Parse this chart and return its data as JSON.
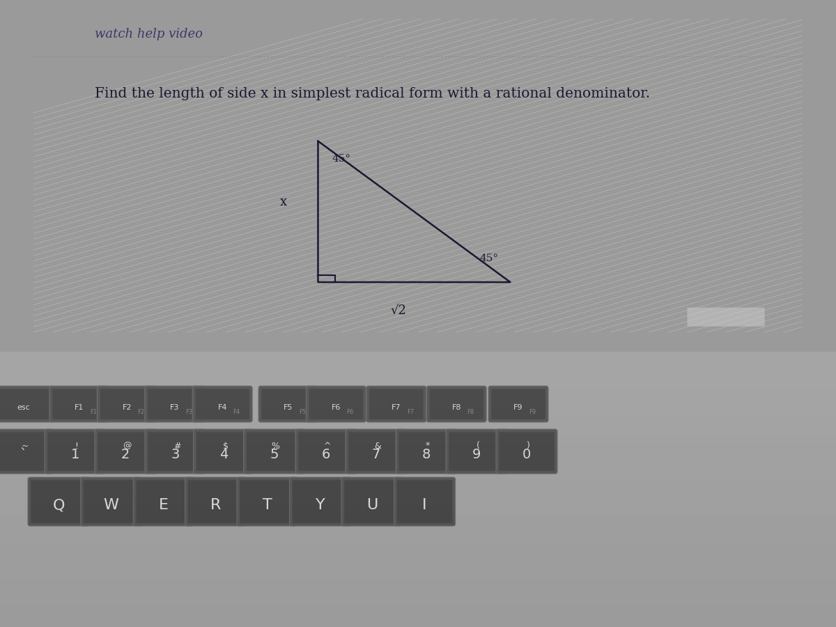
{
  "title_line1": "Find the length of side x in simplest radical form with a rational denominator.",
  "angle_top": "45°",
  "angle_bottom": "45°",
  "side_label": "x",
  "hyp_label": "√2",
  "screen_bg": "#e8e4d8",
  "screen_stripe_color": "#d8d4c8",
  "laptop_body_color": "#b0b0b0",
  "bezel_color": "#1a1a1a",
  "key_color": "#111111",
  "key_face_color": "#0a0a0a",
  "key_text_color": "#e0e0e0",
  "aluminum_color": "#9a9a9a",
  "black_bar_color": "#0d0d0d",
  "tri_color": "#1a1832",
  "text_color": "#1a1832",
  "font_family": "serif",
  "dashed_line_color": "#888888",
  "top_text_color": "#2a2860"
}
